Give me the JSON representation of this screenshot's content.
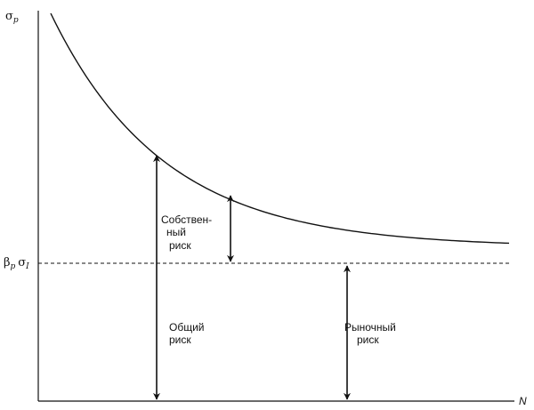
{
  "y_axis_label": {
    "symbol": "σ",
    "subscript": "p"
  },
  "market_level_label": {
    "beta": "β",
    "beta_subscript": "p",
    "sigma": "σ",
    "sigma_subscript": "I"
  },
  "x_axis_label": "N",
  "unsystematic_risk": [
    "Собствен-",
    "ный",
    "риск"
  ],
  "total_risk": [
    "Общий",
    "риск"
  ],
  "market_risk": [
    "Рыночный",
    "риск"
  ]
}
